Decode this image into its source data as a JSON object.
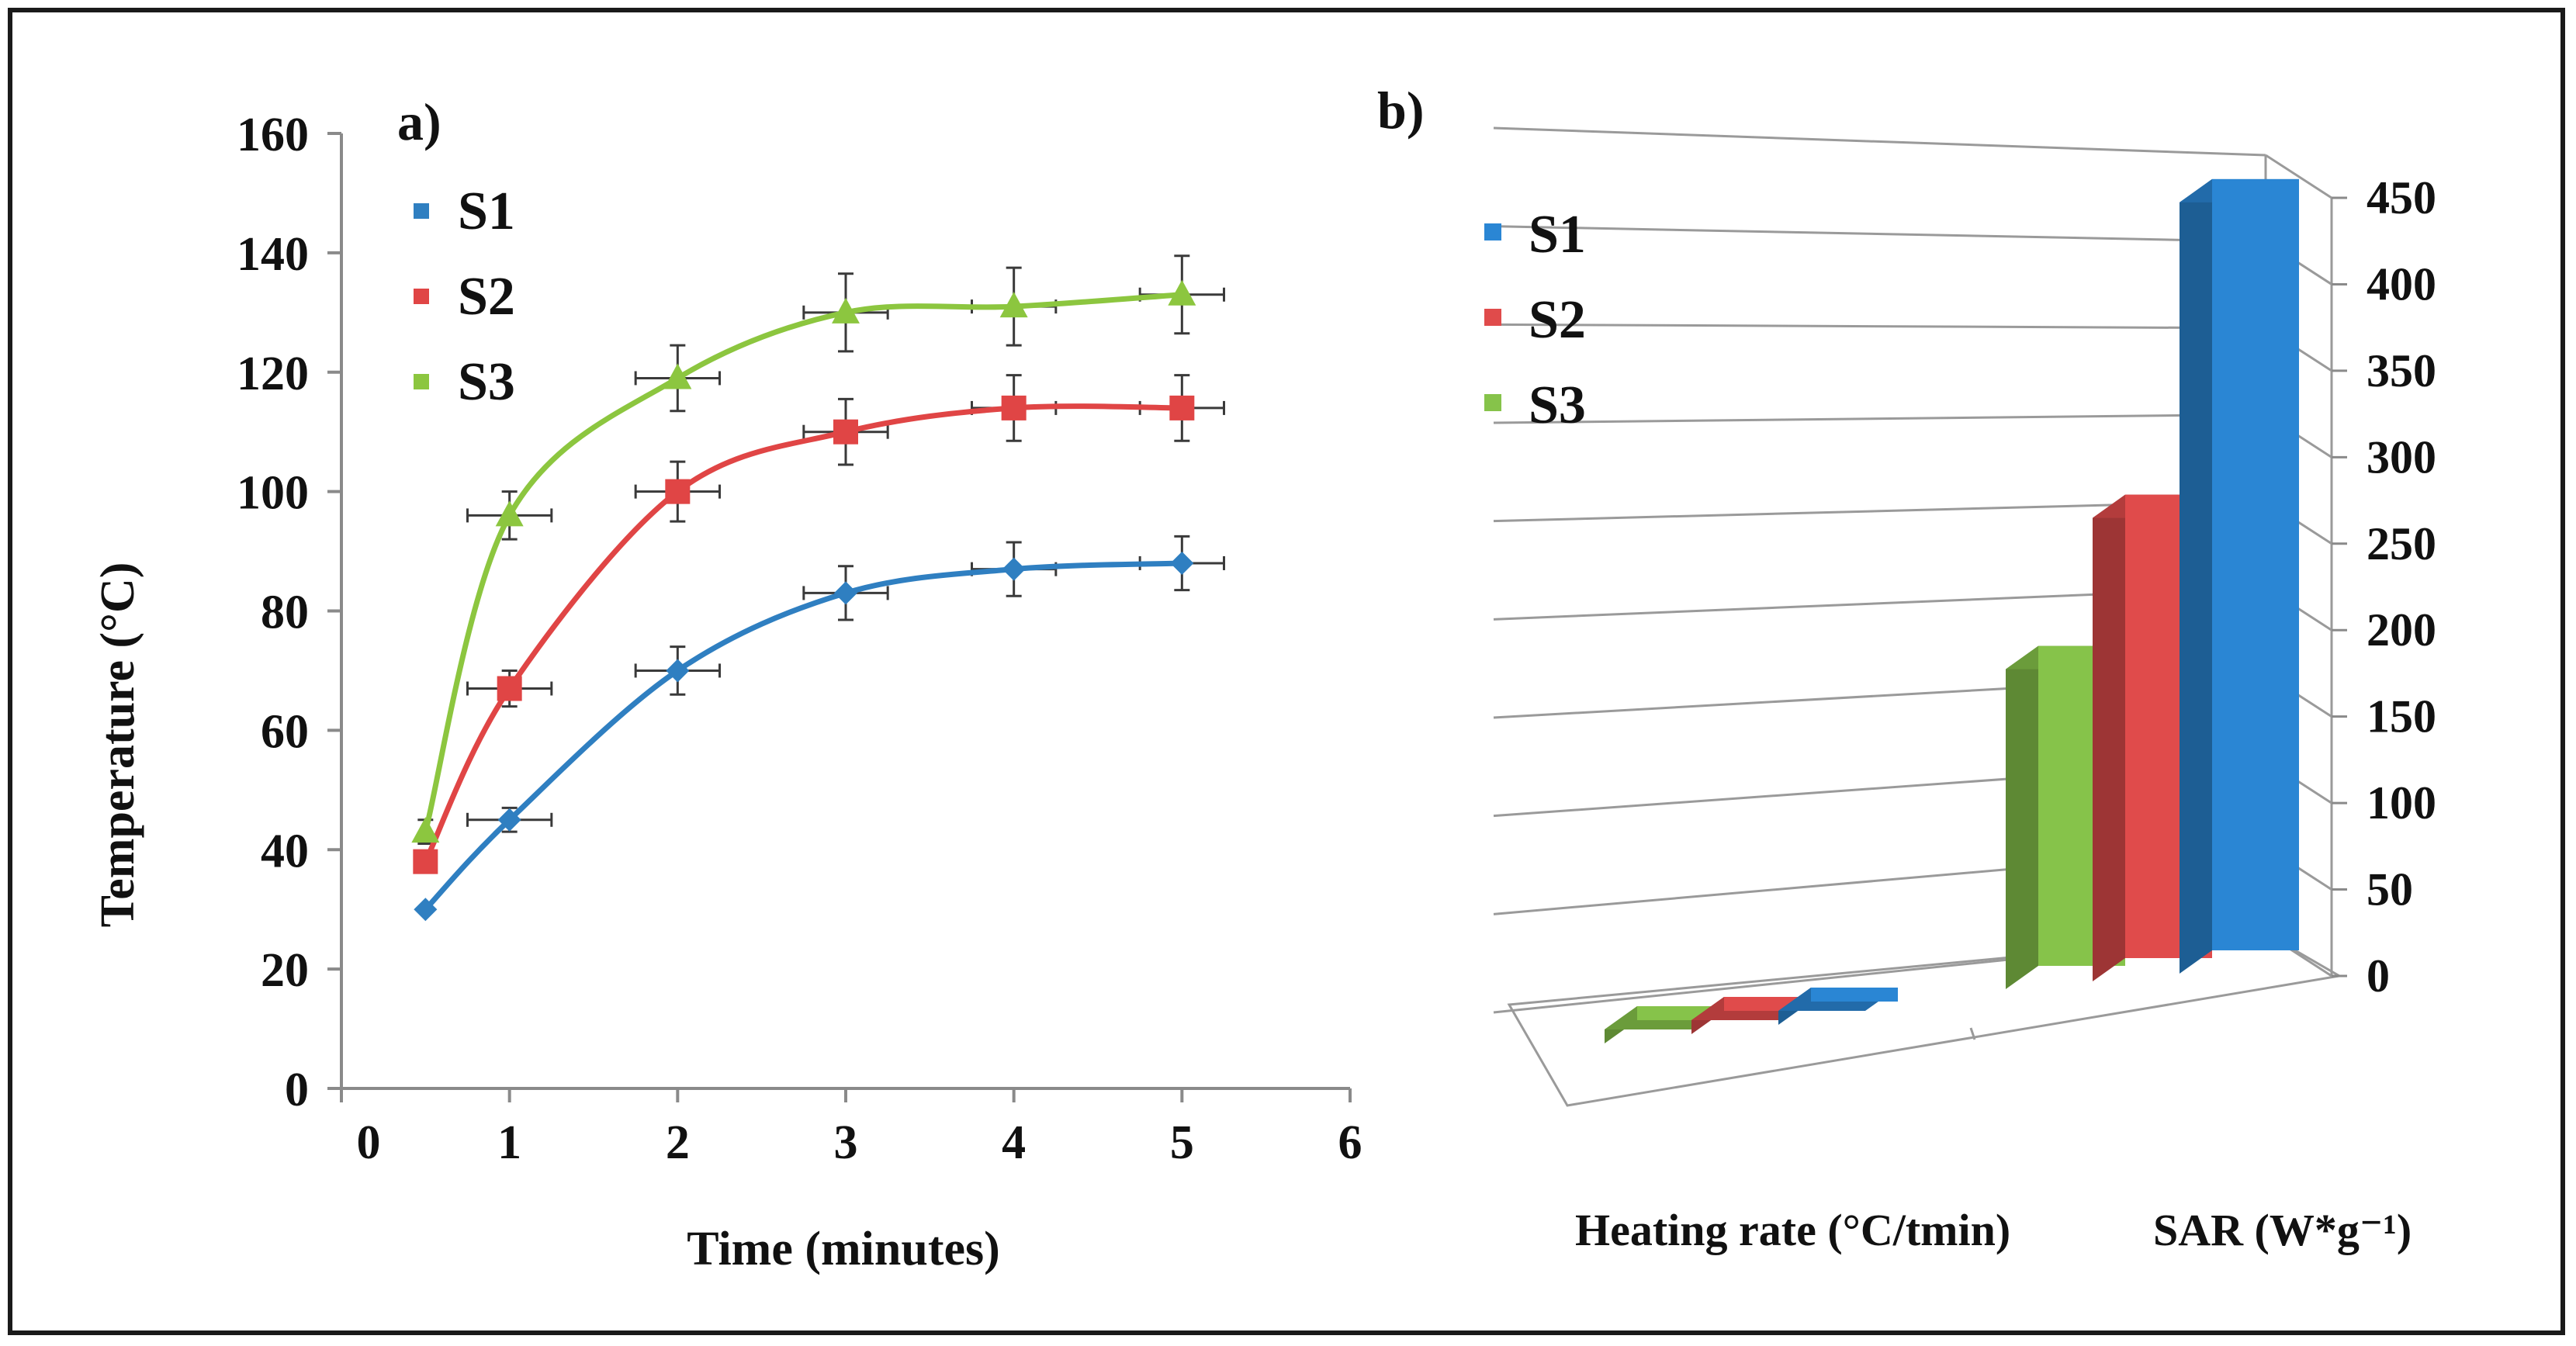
{
  "chart_data": [
    {
      "type": "line",
      "panel_label": "a)",
      "xlabel": "Time (minutes)",
      "ylabel": "Temperature (°C)",
      "xlim": [
        0,
        6
      ],
      "ylim": [
        0,
        160
      ],
      "xticks": [
        "0",
        "1",
        "2",
        "3",
        "4",
        "5",
        "6"
      ],
      "yticks": [
        "0",
        "20",
        "40",
        "60",
        "80",
        "100",
        "120",
        "140",
        "160"
      ],
      "x": [
        0.5,
        1,
        2,
        3,
        4,
        5
      ],
      "x_error": 0.25,
      "series": [
        {
          "name": "S1",
          "color": "#2f7fc1",
          "marker": "diamond",
          "values": [
            30,
            45,
            70,
            83,
            87,
            88
          ],
          "errors": [
            0,
            2,
            4,
            4.5,
            4.5,
            4.5
          ]
        },
        {
          "name": "S2",
          "color": "#e04545",
          "marker": "square",
          "values": [
            38,
            67,
            100,
            110,
            114,
            114
          ],
          "errors": [
            0,
            3,
            5,
            5.5,
            5.5,
            5.5
          ]
        },
        {
          "name": "S3",
          "color": "#8cc63f",
          "marker": "triangle",
          "values": [
            43,
            96,
            119,
            130,
            131,
            133
          ],
          "errors": [
            2,
            4,
            5.5,
            6.5,
            6.5,
            6.5
          ]
        }
      ],
      "legend": "top-left"
    },
    {
      "type": "bar",
      "panel_label": "b)",
      "categories": [
        "Heating rate (°C/tmin)",
        "SAR (W*g⁻¹)"
      ],
      "yticks": [
        "0",
        "50",
        "100",
        "150",
        "200",
        "250",
        "300",
        "350",
        "400",
        "450"
      ],
      "ylim": [
        0,
        450
      ],
      "series": [
        {
          "name": "S1",
          "color": "#2a86d4",
          "values": [
            2,
            446
          ]
        },
        {
          "name": "S2",
          "color": "#e04b4b",
          "values": [
            2,
            268
          ]
        },
        {
          "name": "S3",
          "color": "#86c34a",
          "values": [
            2,
            185
          ]
        }
      ],
      "legend": "top-left"
    }
  ]
}
